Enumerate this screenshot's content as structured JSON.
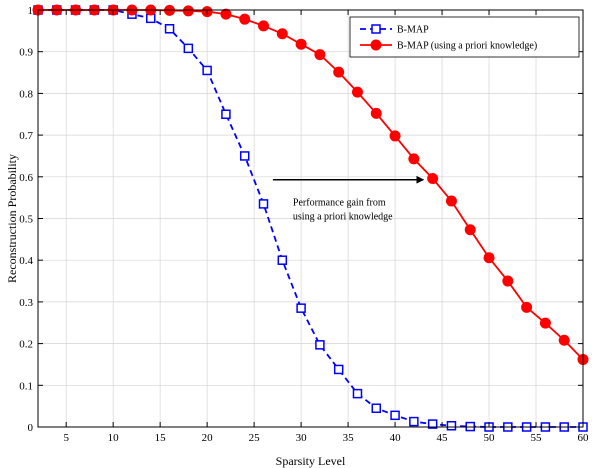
{
  "chart_data": {
    "type": "line",
    "xlabel": "Sparsity Level",
    "ylabel": "Reconstruction Probability",
    "xlim": [
      2,
      60
    ],
    "ylim": [
      0,
      1
    ],
    "xticks": [
      5,
      10,
      15,
      20,
      25,
      30,
      35,
      40,
      45,
      50,
      55,
      60
    ],
    "yticks": [
      0,
      0.1,
      0.2,
      0.3,
      0.4,
      0.5,
      0.6,
      0.7,
      0.8,
      0.9,
      1
    ],
    "grid": true,
    "legend_position": "top-right",
    "series": [
      {
        "name": "B-MAP",
        "color": "#0000ff",
        "line_style": "dashed",
        "marker": "square-open",
        "x": [
          2,
          4,
          6,
          8,
          10,
          12,
          14,
          16,
          18,
          20,
          22,
          24,
          26,
          28,
          30,
          32,
          34,
          36,
          38,
          40,
          42,
          44,
          46,
          48,
          50,
          52,
          54,
          56,
          58,
          60
        ],
        "y": [
          1.0,
          1.0,
          1.0,
          1.0,
          1.0,
          0.99,
          0.98,
          0.955,
          0.908,
          0.855,
          0.75,
          0.65,
          0.535,
          0.4,
          0.285,
          0.197,
          0.138,
          0.08,
          0.045,
          0.028,
          0.013,
          0.007,
          0.003,
          0.001,
          0.0,
          0.0,
          0.0,
          0.0,
          0.0,
          0.0
        ]
      },
      {
        "name": "B-MAP (using a priori knowledge)",
        "color": "#ff0000",
        "line_style": "solid",
        "marker": "circle-filled",
        "x": [
          2,
          4,
          6,
          8,
          10,
          12,
          14,
          16,
          18,
          20,
          22,
          24,
          26,
          28,
          30,
          32,
          34,
          36,
          38,
          40,
          42,
          44,
          46,
          48,
          50,
          52,
          54,
          56,
          58,
          60
        ],
        "y": [
          1.0,
          1.0,
          1.0,
          1.0,
          1.0,
          1.0,
          1.0,
          0.999,
          0.998,
          0.996,
          0.99,
          0.978,
          0.962,
          0.943,
          0.918,
          0.893,
          0.851,
          0.803,
          0.752,
          0.698,
          0.643,
          0.596,
          0.542,
          0.473,
          0.406,
          0.35,
          0.287,
          0.249,
          0.208,
          0.162
        ]
      }
    ],
    "annotation": {
      "lines": [
        "Performance gain from",
        "using a priori knowledge"
      ],
      "arrow_from": [
        27,
        0.593
      ],
      "arrow_to": [
        43,
        0.593
      ]
    }
  }
}
